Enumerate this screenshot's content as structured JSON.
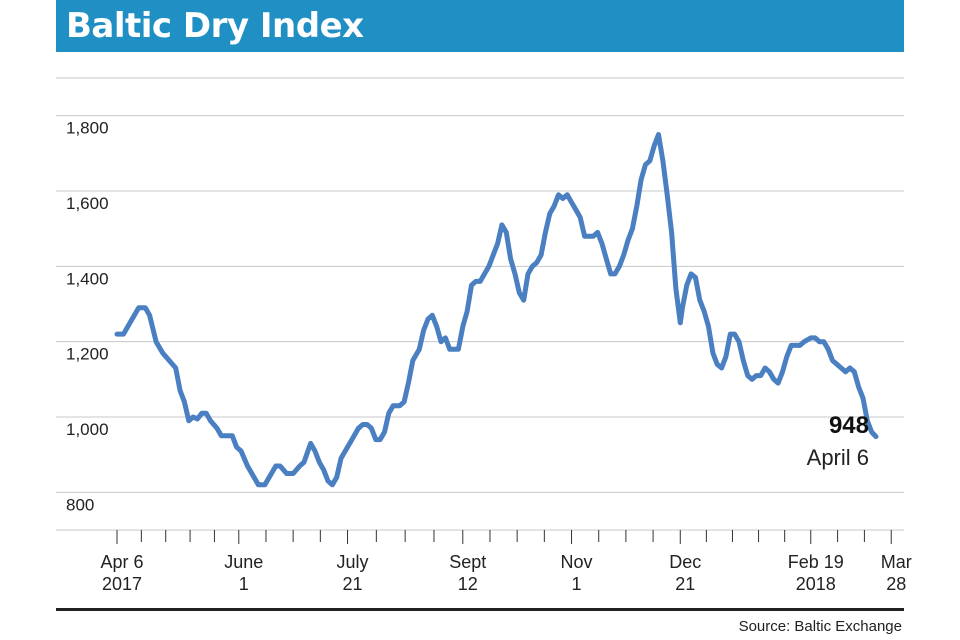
{
  "title": "Baltic Dry Index",
  "source": "Source: Baltic Exchange",
  "colors": {
    "title_bar": "#1f8fc4",
    "line": "#4a7fc1",
    "grid": "#c8c8c8"
  },
  "chart_data": {
    "type": "line",
    "title": "Baltic Dry Index",
    "xlabel": "",
    "ylabel": "",
    "ylim": [
      700,
      1900
    ],
    "grid": true,
    "y_ticks": [
      {
        "value": 800,
        "label": "800"
      },
      {
        "value": 1000,
        "label": "1,000"
      },
      {
        "value": 1200,
        "label": "1,200"
      },
      {
        "value": 1400,
        "label": "1,400"
      },
      {
        "value": 1600,
        "label": "1,600"
      },
      {
        "value": 1800,
        "label": "1,800"
      }
    ],
    "x_ticks": [
      {
        "date": "2017-04-06",
        "line1": "Apr 6",
        "line2": "2017"
      },
      {
        "date": "2017-06-01",
        "line1": "June",
        "line2": "1"
      },
      {
        "date": "2017-07-21",
        "line1": "July",
        "line2": "21"
      },
      {
        "date": "2017-09-12",
        "line1": "Sept",
        "line2": "12"
      },
      {
        "date": "2017-11-01",
        "line1": "Nov",
        "line2": "1"
      },
      {
        "date": "2017-12-21",
        "line1": "Dec",
        "line2": "21"
      },
      {
        "date": "2018-02-19",
        "line1": "Feb 19",
        "line2": "2018"
      },
      {
        "date": "2018-03-28",
        "line1": "Mar",
        "line2": "28"
      }
    ],
    "annotation": {
      "value": "948",
      "label": "April 6"
    },
    "series": [
      {
        "name": "",
        "points": [
          [
            "2017-04-06",
            1220
          ],
          [
            "2017-04-09",
            1220
          ],
          [
            "2017-04-12",
            1250
          ],
          [
            "2017-04-16",
            1290
          ],
          [
            "2017-04-19",
            1290
          ],
          [
            "2017-04-21",
            1270
          ],
          [
            "2017-04-24",
            1200
          ],
          [
            "2017-04-27",
            1170
          ],
          [
            "2017-04-30",
            1150
          ],
          [
            "2017-05-03",
            1130
          ],
          [
            "2017-05-05",
            1070
          ],
          [
            "2017-05-07",
            1040
          ],
          [
            "2017-05-09",
            990
          ],
          [
            "2017-05-11",
            1000
          ],
          [
            "2017-05-13",
            995
          ],
          [
            "2017-05-15",
            1010
          ],
          [
            "2017-05-17",
            1010
          ],
          [
            "2017-05-19",
            990
          ],
          [
            "2017-05-22",
            970
          ],
          [
            "2017-05-24",
            950
          ],
          [
            "2017-05-27",
            950
          ],
          [
            "2017-05-29",
            950
          ],
          [
            "2017-05-31",
            920
          ],
          [
            "2017-06-02",
            910
          ],
          [
            "2017-06-05",
            870
          ],
          [
            "2017-06-08",
            840
          ],
          [
            "2017-06-10",
            820
          ],
          [
            "2017-06-13",
            820
          ],
          [
            "2017-06-15",
            840
          ],
          [
            "2017-06-18",
            870
          ],
          [
            "2017-06-20",
            870
          ],
          [
            "2017-06-23",
            850
          ],
          [
            "2017-06-26",
            850
          ],
          [
            "2017-06-29",
            870
          ],
          [
            "2017-07-01",
            880
          ],
          [
            "2017-07-04",
            930
          ],
          [
            "2017-07-06",
            910
          ],
          [
            "2017-07-08",
            880
          ],
          [
            "2017-07-10",
            860
          ],
          [
            "2017-07-12",
            830
          ],
          [
            "2017-07-14",
            820
          ],
          [
            "2017-07-16",
            840
          ],
          [
            "2017-07-18",
            890
          ],
          [
            "2017-07-21",
            920
          ],
          [
            "2017-07-23",
            940
          ],
          [
            "2017-07-26",
            970
          ],
          [
            "2017-07-28",
            980
          ],
          [
            "2017-07-30",
            980
          ],
          [
            "2017-08-01",
            970
          ],
          [
            "2017-08-03",
            940
          ],
          [
            "2017-08-05",
            940
          ],
          [
            "2017-08-07",
            960
          ],
          [
            "2017-08-09",
            1010
          ],
          [
            "2017-08-11",
            1030
          ],
          [
            "2017-08-14",
            1030
          ],
          [
            "2017-08-16",
            1040
          ],
          [
            "2017-08-18",
            1090
          ],
          [
            "2017-08-20",
            1150
          ],
          [
            "2017-08-23",
            1180
          ],
          [
            "2017-08-25",
            1230
          ],
          [
            "2017-08-27",
            1260
          ],
          [
            "2017-08-29",
            1270
          ],
          [
            "2017-08-31",
            1240
          ],
          [
            "2017-09-02",
            1200
          ],
          [
            "2017-09-04",
            1210
          ],
          [
            "2017-09-06",
            1180
          ],
          [
            "2017-09-08",
            1180
          ],
          [
            "2017-09-10",
            1180
          ],
          [
            "2017-09-12",
            1240
          ],
          [
            "2017-09-14",
            1280
          ],
          [
            "2017-09-16",
            1350
          ],
          [
            "2017-09-18",
            1360
          ],
          [
            "2017-09-20",
            1360
          ],
          [
            "2017-09-22",
            1380
          ],
          [
            "2017-09-24",
            1400
          ],
          [
            "2017-09-26",
            1430
          ],
          [
            "2017-09-28",
            1460
          ],
          [
            "2017-09-30",
            1510
          ],
          [
            "2017-10-02",
            1490
          ],
          [
            "2017-10-04",
            1420
          ],
          [
            "2017-10-06",
            1380
          ],
          [
            "2017-10-08",
            1330
          ],
          [
            "2017-10-10",
            1310
          ],
          [
            "2017-10-12",
            1380
          ],
          [
            "2017-10-14",
            1400
          ],
          [
            "2017-10-16",
            1410
          ],
          [
            "2017-10-18",
            1430
          ],
          [
            "2017-10-20",
            1490
          ],
          [
            "2017-10-22",
            1540
          ],
          [
            "2017-10-24",
            1560
          ],
          [
            "2017-10-26",
            1590
          ],
          [
            "2017-10-28",
            1580
          ],
          [
            "2017-10-30",
            1590
          ],
          [
            "2017-11-01",
            1570
          ],
          [
            "2017-11-03",
            1550
          ],
          [
            "2017-11-05",
            1530
          ],
          [
            "2017-11-07",
            1480
          ],
          [
            "2017-11-09",
            1480
          ],
          [
            "2017-11-11",
            1480
          ],
          [
            "2017-11-13",
            1490
          ],
          [
            "2017-11-15",
            1460
          ],
          [
            "2017-11-17",
            1420
          ],
          [
            "2017-11-19",
            1380
          ],
          [
            "2017-11-21",
            1380
          ],
          [
            "2017-11-23",
            1400
          ],
          [
            "2017-11-25",
            1430
          ],
          [
            "2017-11-27",
            1470
          ],
          [
            "2017-11-29",
            1500
          ],
          [
            "2017-12-01",
            1560
          ],
          [
            "2017-12-03",
            1630
          ],
          [
            "2017-12-05",
            1670
          ],
          [
            "2017-12-07",
            1680
          ],
          [
            "2017-12-09",
            1720
          ],
          [
            "2017-12-11",
            1750
          ],
          [
            "2017-12-13",
            1680
          ],
          [
            "2017-12-15",
            1590
          ],
          [
            "2017-12-17",
            1490
          ],
          [
            "2017-12-19",
            1340
          ],
          [
            "2017-12-21",
            1250
          ],
          [
            "2017-12-22",
            1290
          ],
          [
            "2017-12-24",
            1350
          ],
          [
            "2017-12-26",
            1380
          ],
          [
            "2017-12-28",
            1370
          ],
          [
            "2017-12-30",
            1310
          ],
          [
            "2018-01-01",
            1280
          ],
          [
            "2018-01-03",
            1240
          ],
          [
            "2018-01-05",
            1170
          ],
          [
            "2018-01-07",
            1140
          ],
          [
            "2018-01-09",
            1130
          ],
          [
            "2018-01-11",
            1160
          ],
          [
            "2018-01-13",
            1220
          ],
          [
            "2018-01-15",
            1220
          ],
          [
            "2018-01-17",
            1200
          ],
          [
            "2018-01-19",
            1150
          ],
          [
            "2018-01-21",
            1110
          ],
          [
            "2018-01-23",
            1100
          ],
          [
            "2018-01-25",
            1110
          ],
          [
            "2018-01-27",
            1110
          ],
          [
            "2018-01-29",
            1130
          ],
          [
            "2018-01-31",
            1120
          ],
          [
            "2018-02-02",
            1100
          ],
          [
            "2018-02-04",
            1090
          ],
          [
            "2018-02-06",
            1120
          ],
          [
            "2018-02-08",
            1160
          ],
          [
            "2018-02-10",
            1190
          ],
          [
            "2018-02-12",
            1190
          ],
          [
            "2018-02-14",
            1190
          ],
          [
            "2018-02-16",
            1200
          ],
          [
            "2018-02-19",
            1210
          ],
          [
            "2018-02-21",
            1210
          ],
          [
            "2018-02-23",
            1200
          ],
          [
            "2018-02-25",
            1200
          ],
          [
            "2018-02-27",
            1180
          ],
          [
            "2018-03-01",
            1150
          ],
          [
            "2018-03-03",
            1140
          ],
          [
            "2018-03-05",
            1130
          ],
          [
            "2018-03-07",
            1120
          ],
          [
            "2018-03-09",
            1130
          ],
          [
            "2018-03-11",
            1120
          ],
          [
            "2018-03-13",
            1080
          ],
          [
            "2018-03-15",
            1050
          ],
          [
            "2018-03-17",
            990
          ],
          [
            "2018-03-19",
            960
          ],
          [
            "2018-03-21",
            948
          ]
        ]
      }
    ]
  }
}
